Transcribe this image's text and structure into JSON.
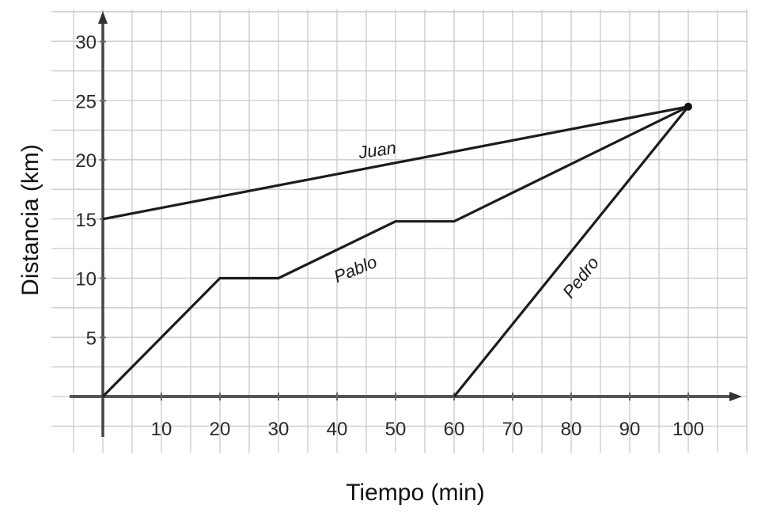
{
  "chart_data": {
    "type": "line",
    "xlabel": "Tiempo (min)",
    "ylabel": "Distancia (km)",
    "xlim": [
      0,
      110
    ],
    "ylim": [
      -3.5,
      33
    ],
    "x_ticks": [
      10,
      20,
      30,
      40,
      50,
      60,
      70,
      80,
      90,
      100
    ],
    "y_ticks": [
      5,
      10,
      15,
      20,
      25,
      30
    ],
    "grid": true,
    "series": [
      {
        "name": "Juan",
        "points": [
          [
            0,
            15
          ],
          [
            100,
            24.5
          ]
        ]
      },
      {
        "name": "Pablo",
        "points": [
          [
            0,
            0
          ],
          [
            20,
            10
          ],
          [
            30,
            10
          ],
          [
            50,
            14.8
          ],
          [
            60,
            14.8
          ],
          [
            100,
            24.5
          ]
        ]
      },
      {
        "name": "Pedro",
        "points": [
          [
            60,
            0
          ],
          [
            100,
            24.5
          ]
        ]
      }
    ]
  }
}
